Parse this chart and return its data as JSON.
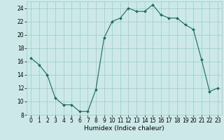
{
  "x": [
    0,
    1,
    2,
    3,
    4,
    5,
    6,
    7,
    8,
    9,
    10,
    11,
    12,
    13,
    14,
    15,
    16,
    17,
    18,
    19,
    20,
    21,
    22,
    23
  ],
  "y": [
    16.5,
    15.5,
    14.0,
    10.5,
    9.5,
    9.5,
    8.5,
    8.5,
    11.8,
    19.5,
    22.0,
    22.5,
    24.0,
    23.5,
    23.5,
    24.5,
    23.0,
    22.5,
    22.5,
    21.5,
    20.8,
    16.3,
    11.5,
    12.0
  ],
  "line_color": "#1a6b5a",
  "marker": "D",
  "marker_size": 2,
  "bg_color": "#cce8e8",
  "grid_color": "#99cccc",
  "xlabel": "Humidex (Indice chaleur)",
  "ylim": [
    8,
    25
  ],
  "xlim": [
    -0.5,
    23.5
  ],
  "yticks": [
    8,
    10,
    12,
    14,
    16,
    18,
    20,
    22,
    24
  ],
  "xticks": [
    0,
    1,
    2,
    3,
    4,
    5,
    6,
    7,
    8,
    9,
    10,
    11,
    12,
    13,
    14,
    15,
    16,
    17,
    18,
    19,
    20,
    21,
    22,
    23
  ],
  "xlabel_fontsize": 6.5,
  "tick_fontsize": 5.5
}
